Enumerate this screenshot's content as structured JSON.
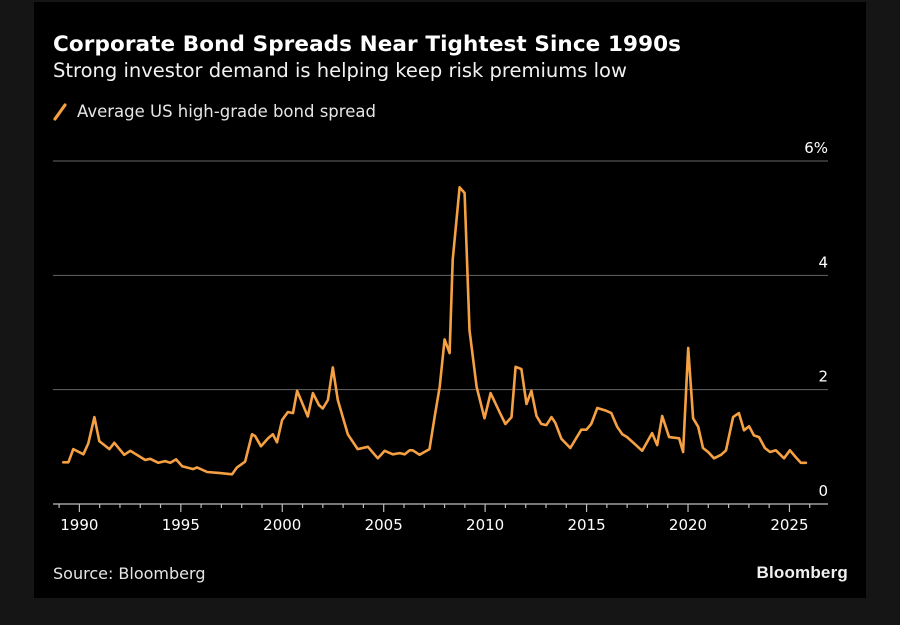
{
  "title": "Corporate Bond Spreads Near Tightest Since 1990s",
  "subtitle": "Strong investor demand is helping keep risk premiums low",
  "legend": {
    "icon": "orange-line-swatch-icon",
    "label": "Average US high-grade bond spread"
  },
  "source": "Source: Bloomberg",
  "brand": "Bloomberg",
  "colors": {
    "line": "#f5a042",
    "background": "#000000",
    "frame": "#151515",
    "grid": "#666666",
    "text": "#ffffff"
  },
  "chart_data": {
    "type": "line",
    "title": "Corporate Bond Spreads Near Tightest Since 1990s",
    "subtitle": "Strong investor demand is helping keep risk premiums low",
    "xlabel": "",
    "ylabel": "",
    "xlim": [
      1988.7,
      2026.9
    ],
    "ylim": [
      0,
      6
    ],
    "y_ticks": [
      0,
      2,
      4,
      6
    ],
    "y_tick_labels": [
      "0",
      "2",
      "4",
      "6%"
    ],
    "x_ticks": [
      1990,
      1995,
      2000,
      2005,
      2010,
      2015,
      2020,
      2025
    ],
    "x_tick_labels": [
      "1990",
      "1995",
      "2000",
      "2005",
      "2010",
      "2015",
      "2020",
      "2025"
    ],
    "x_minor_step": 1,
    "grid": "horizontal",
    "y_axis_side": "right",
    "legend_position": "top-left",
    "source": "Source: Bloomberg",
    "series": [
      {
        "name": "Average US high-grade bond spread",
        "x": [
          1989.21,
          1989.46,
          1989.7,
          1990.2,
          1990.44,
          1990.74,
          1990.98,
          1991.48,
          1991.72,
          1992.21,
          1992.51,
          1993.25,
          1993.49,
          1993.89,
          1994.23,
          1994.48,
          1994.77,
          1995.07,
          1995.61,
          1995.8,
          1996.3,
          1996.94,
          1997.53,
          1997.77,
          1998.17,
          1998.51,
          1998.66,
          1998.95,
          1999.3,
          1999.54,
          1999.74,
          1999.99,
          2000.28,
          2000.53,
          2000.73,
          2001.26,
          2001.51,
          2001.81,
          2002.0,
          2002.25,
          2002.49,
          2002.74,
          2003.23,
          2003.72,
          2004.22,
          2004.71,
          2005.05,
          2005.45,
          2005.79,
          2006.04,
          2006.28,
          2006.43,
          2006.77,
          2007.26,
          2007.51,
          2007.76,
          2008.0,
          2008.25,
          2008.4,
          2008.74,
          2008.99,
          2009.23,
          2009.58,
          2009.97,
          2010.27,
          2010.71,
          2011.0,
          2011.3,
          2011.5,
          2011.79,
          2012.04,
          2012.28,
          2012.53,
          2012.77,
          2013.02,
          2013.27,
          2013.46,
          2013.76,
          2014.2,
          2014.74,
          2014.99,
          2015.23,
          2015.53,
          2015.97,
          2016.22,
          2016.51,
          2016.76,
          2017.0,
          2017.74,
          2018.23,
          2018.48,
          2018.73,
          2019.07,
          2019.56,
          2019.76,
          2020.01,
          2020.25,
          2020.5,
          2020.74,
          2020.99,
          2021.28,
          2021.63,
          2021.87,
          2022.22,
          2022.51,
          2022.76,
          2023.01,
          2023.25,
          2023.5,
          2023.79,
          2024.04,
          2024.33,
          2024.73,
          2025.02,
          2025.31,
          2025.56,
          2025.81
        ],
        "values": [
          0.73,
          0.73,
          0.96,
          0.87,
          1.06,
          1.52,
          1.1,
          0.96,
          1.07,
          0.86,
          0.93,
          0.77,
          0.79,
          0.72,
          0.75,
          0.72,
          0.78,
          0.66,
          0.61,
          0.64,
          0.56,
          0.54,
          0.52,
          0.64,
          0.74,
          1.22,
          1.19,
          1.01,
          1.15,
          1.22,
          1.08,
          1.47,
          1.61,
          1.59,
          1.98,
          1.53,
          1.94,
          1.73,
          1.67,
          1.82,
          2.39,
          1.82,
          1.22,
          0.96,
          1.0,
          0.8,
          0.93,
          0.87,
          0.89,
          0.87,
          0.94,
          0.94,
          0.86,
          0.96,
          1.52,
          2.05,
          2.88,
          2.64,
          4.27,
          5.54,
          5.44,
          3.04,
          2.05,
          1.5,
          1.94,
          1.61,
          1.4,
          1.52,
          2.4,
          2.36,
          1.75,
          1.98,
          1.54,
          1.4,
          1.38,
          1.52,
          1.42,
          1.14,
          0.98,
          1.3,
          1.3,
          1.4,
          1.68,
          1.63,
          1.59,
          1.35,
          1.22,
          1.17,
          0.93,
          1.24,
          1.03,
          1.54,
          1.17,
          1.15,
          0.91,
          2.73,
          1.5,
          1.35,
          0.98,
          0.91,
          0.8,
          0.86,
          0.94,
          1.52,
          1.59,
          1.29,
          1.36,
          1.2,
          1.17,
          0.98,
          0.91,
          0.94,
          0.8,
          0.94,
          0.82,
          0.72,
          0.72
        ]
      }
    ]
  }
}
